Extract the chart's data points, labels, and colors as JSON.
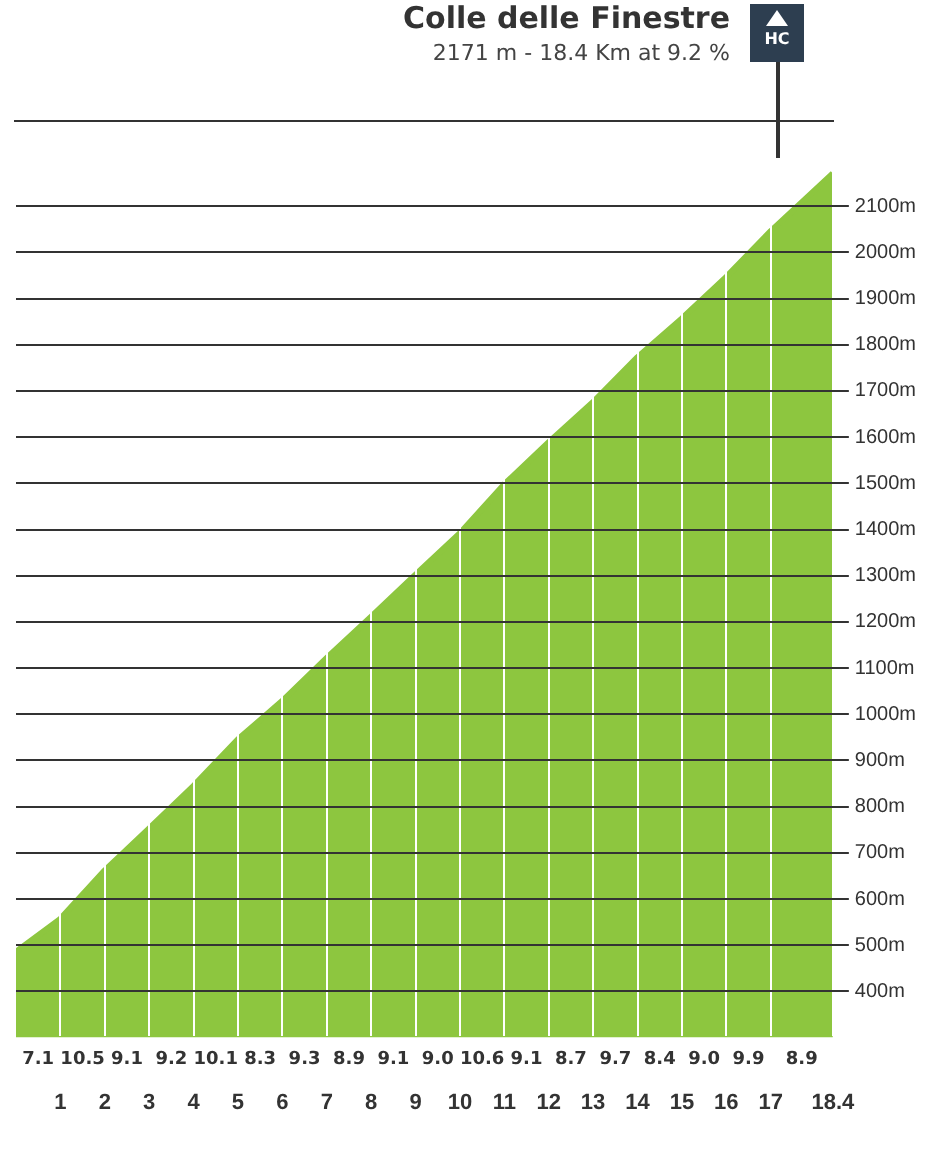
{
  "chart_data": {
    "type": "area",
    "title": "Colle delle Finestre",
    "subtitle": "2171 m - 18.4 Km at 9.2 %",
    "x": [
      0,
      1,
      2,
      3,
      4,
      5,
      6,
      7,
      8,
      9,
      10,
      11,
      12,
      13,
      14,
      15,
      16,
      17,
      18.4
    ],
    "series": [
      {
        "color": "#8dc63f",
        "values": [
          486,
          557,
          662,
          753,
          845,
          946,
          1029,
          1122,
          1211,
          1302,
          1392,
          1498,
          1589,
          1676,
          1773,
          1857,
          1947,
          2046,
          2171
        ]
      }
    ],
    "xlim": [
      0,
      18.4
    ],
    "xticks": [
      1,
      2,
      3,
      4,
      5,
      6,
      7,
      8,
      9,
      10,
      11,
      12,
      13,
      14,
      15,
      16,
      17,
      18.4
    ],
    "ylim": [
      300,
      2200
    ],
    "yticks": [
      {
        "value": 400,
        "label": "400m"
      },
      {
        "value": 500,
        "label": "500m"
      },
      {
        "value": 600,
        "label": "600m"
      },
      {
        "value": 700,
        "label": "700m"
      },
      {
        "value": 800,
        "label": "800m"
      },
      {
        "value": 900,
        "label": "900m"
      },
      {
        "value": 1000,
        "label": "1000m"
      },
      {
        "value": 1100,
        "label": "1100m"
      },
      {
        "value": 1200,
        "label": "1200m"
      },
      {
        "value": 1300,
        "label": "1300m"
      },
      {
        "value": 1400,
        "label": "1400m"
      },
      {
        "value": 1500,
        "label": "1500m"
      },
      {
        "value": 1600,
        "label": "1600m"
      },
      {
        "value": 1700,
        "label": "1700m"
      },
      {
        "value": 1800,
        "label": "1800m"
      },
      {
        "value": 1900,
        "label": "1900m"
      },
      {
        "value": 2000,
        "label": "2000m"
      },
      {
        "value": 2100,
        "label": "2100m"
      }
    ],
    "grid": true,
    "line_style": "solid",
    "marker": "none",
    "legend": false,
    "annotations": [
      "HC",
      "7.1",
      "10.5",
      "9.1",
      "9.2",
      "10.1",
      "8.3",
      "9.3",
      "8.9",
      "9.1",
      "9.0",
      "10.6",
      "9.1",
      "8.7",
      "9.7",
      "8.4",
      "9.0",
      "9.9",
      "8.9"
    ]
  }
}
